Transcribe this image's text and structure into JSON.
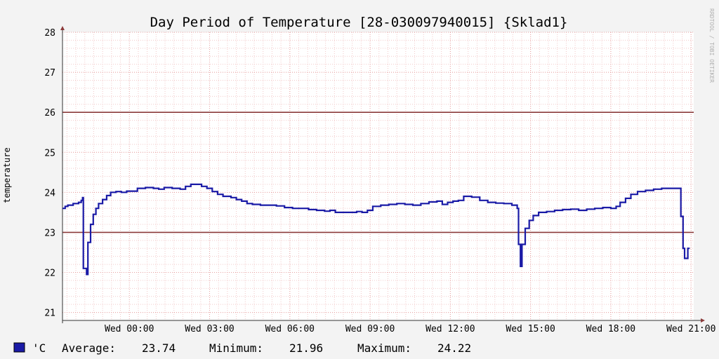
{
  "chart_data": {
    "type": "line",
    "title": "Day Period of Temperature [28-030097940015] {Sklad1}",
    "ylabel": "temperature",
    "xlabel": "",
    "watermark": "RRDTOOL / TOBI OETIKER",
    "ylim": [
      20.8,
      28
    ],
    "yticks": [
      21,
      22,
      23,
      24,
      25,
      26,
      27,
      28
    ],
    "xlim": [
      -2.5,
      21.1
    ],
    "xticks": [
      {
        "value": 0,
        "label": "Wed 00:00"
      },
      {
        "value": 3,
        "label": "Wed 03:00"
      },
      {
        "value": 6,
        "label": "Wed 06:00"
      },
      {
        "value": 9,
        "label": "Wed 09:00"
      },
      {
        "value": 12,
        "label": "Wed 12:00"
      },
      {
        "value": 15,
        "label": "Wed 15:00"
      },
      {
        "value": 18,
        "label": "Wed 18:00"
      },
      {
        "value": 21,
        "label": "Wed 21:00"
      }
    ],
    "grid": true,
    "hrules": [
      {
        "value": 26,
        "color": "#8b3a3a"
      },
      {
        "value": 23,
        "color": "#8b3a3a"
      }
    ],
    "series": [
      {
        "name": "'C",
        "color": "#1a1aa6",
        "points": [
          [
            -2.5,
            23.6
          ],
          [
            -2.4,
            23.65
          ],
          [
            -2.3,
            23.68
          ],
          [
            -2.1,
            23.72
          ],
          [
            -1.9,
            23.75
          ],
          [
            -1.8,
            23.8
          ],
          [
            -1.75,
            23.87
          ],
          [
            -1.72,
            22.1
          ],
          [
            -1.6,
            21.95
          ],
          [
            -1.55,
            22.75
          ],
          [
            -1.45,
            23.2
          ],
          [
            -1.35,
            23.45
          ],
          [
            -1.25,
            23.6
          ],
          [
            -1.15,
            23.72
          ],
          [
            -1.0,
            23.82
          ],
          [
            -0.85,
            23.92
          ],
          [
            -0.7,
            24.0
          ],
          [
            -0.5,
            24.02
          ],
          [
            -0.3,
            24.0
          ],
          [
            -0.1,
            24.03
          ],
          [
            0.1,
            24.03
          ],
          [
            0.3,
            24.1
          ],
          [
            0.6,
            24.12
          ],
          [
            0.9,
            24.1
          ],
          [
            1.1,
            24.08
          ],
          [
            1.3,
            24.12
          ],
          [
            1.6,
            24.1
          ],
          [
            1.9,
            24.08
          ],
          [
            2.1,
            24.15
          ],
          [
            2.3,
            24.2
          ],
          [
            2.5,
            24.2
          ],
          [
            2.7,
            24.15
          ],
          [
            2.9,
            24.1
          ],
          [
            3.1,
            24.02
          ],
          [
            3.3,
            23.95
          ],
          [
            3.5,
            23.9
          ],
          [
            3.8,
            23.87
          ],
          [
            4.0,
            23.82
          ],
          [
            4.2,
            23.78
          ],
          [
            4.4,
            23.72
          ],
          [
            4.6,
            23.7
          ],
          [
            4.9,
            23.68
          ],
          [
            5.2,
            23.68
          ],
          [
            5.5,
            23.66
          ],
          [
            5.8,
            23.62
          ],
          [
            6.1,
            23.6
          ],
          [
            6.4,
            23.6
          ],
          [
            6.7,
            23.57
          ],
          [
            7.0,
            23.55
          ],
          [
            7.3,
            23.53
          ],
          [
            7.5,
            23.55
          ],
          [
            7.7,
            23.5
          ],
          [
            8.0,
            23.5
          ],
          [
            8.3,
            23.5
          ],
          [
            8.5,
            23.52
          ],
          [
            8.7,
            23.5
          ],
          [
            8.9,
            23.55
          ],
          [
            9.1,
            23.65
          ],
          [
            9.4,
            23.68
          ],
          [
            9.7,
            23.7
          ],
          [
            10.0,
            23.72
          ],
          [
            10.3,
            23.7
          ],
          [
            10.6,
            23.68
          ],
          [
            10.9,
            23.72
          ],
          [
            11.2,
            23.76
          ],
          [
            11.5,
            23.78
          ],
          [
            11.7,
            23.7
          ],
          [
            11.9,
            23.75
          ],
          [
            12.1,
            23.78
          ],
          [
            12.3,
            23.8
          ],
          [
            12.5,
            23.9
          ],
          [
            12.8,
            23.88
          ],
          [
            13.1,
            23.8
          ],
          [
            13.4,
            23.75
          ],
          [
            13.7,
            23.73
          ],
          [
            14.0,
            23.72
          ],
          [
            14.3,
            23.68
          ],
          [
            14.5,
            23.6
          ],
          [
            14.55,
            22.7
          ],
          [
            14.62,
            22.15
          ],
          [
            14.68,
            22.7
          ],
          [
            14.8,
            23.1
          ],
          [
            14.95,
            23.3
          ],
          [
            15.1,
            23.42
          ],
          [
            15.3,
            23.5
          ],
          [
            15.6,
            23.52
          ],
          [
            15.9,
            23.55
          ],
          [
            16.2,
            23.57
          ],
          [
            16.5,
            23.58
          ],
          [
            16.8,
            23.55
          ],
          [
            17.1,
            23.58
          ],
          [
            17.4,
            23.6
          ],
          [
            17.7,
            23.62
          ],
          [
            18.0,
            23.6
          ],
          [
            18.2,
            23.65
          ],
          [
            18.35,
            23.75
          ],
          [
            18.55,
            23.85
          ],
          [
            18.75,
            23.95
          ],
          [
            19.0,
            24.02
          ],
          [
            19.3,
            24.05
          ],
          [
            19.6,
            24.08
          ],
          [
            19.9,
            24.1
          ],
          [
            20.2,
            24.1
          ],
          [
            20.5,
            24.1
          ],
          [
            20.62,
            23.4
          ],
          [
            20.7,
            22.6
          ],
          [
            20.76,
            22.35
          ],
          [
            20.88,
            22.6
          ],
          [
            20.95,
            22.6
          ]
        ]
      }
    ],
    "legend": {
      "series_label": "'C",
      "average_label": "Average:",
      "average_value": "23.74",
      "minimum_label": "Minimum:",
      "minimum_value": "21.96",
      "maximum_label": "Maximum:",
      "maximum_value": "24.22",
      "swatch_color": "#1a1aa6"
    }
  }
}
